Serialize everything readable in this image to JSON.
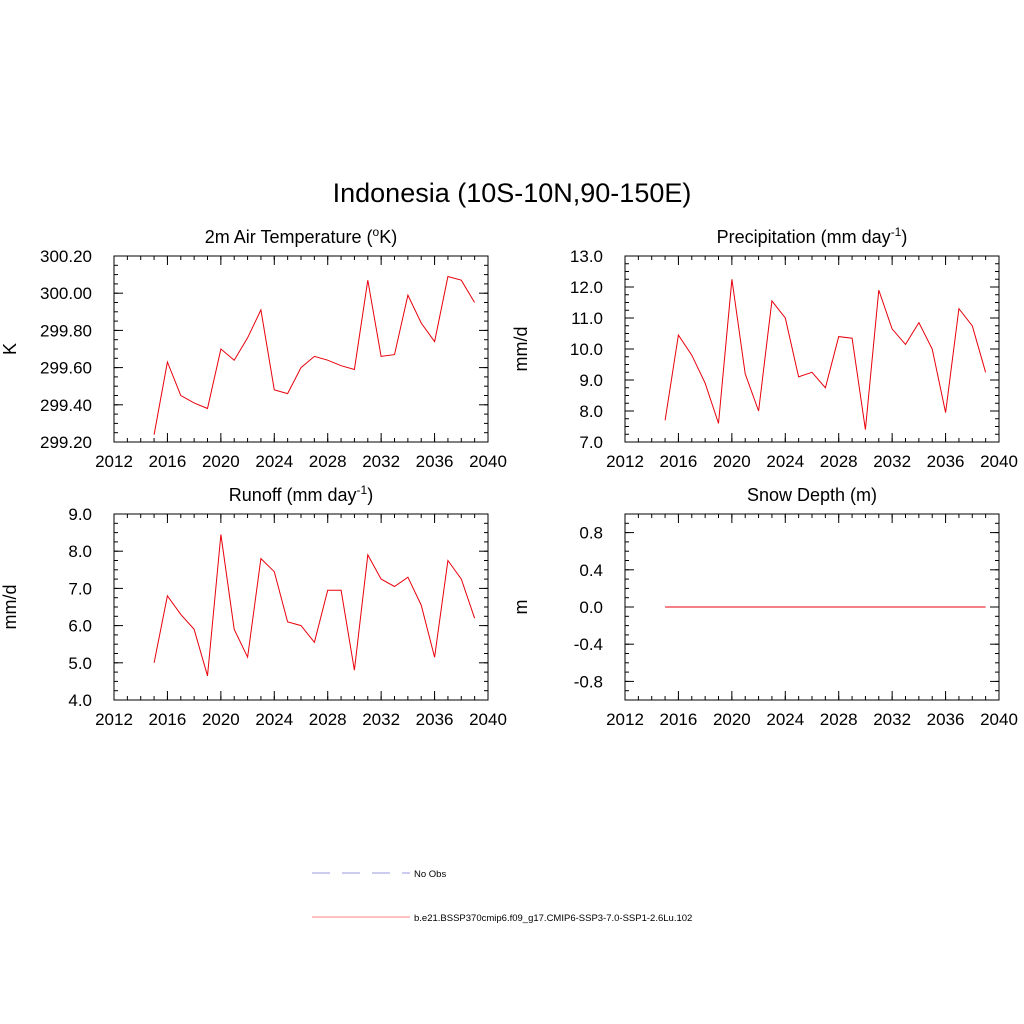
{
  "figure": {
    "title": "Indonesia (10S-10N,90-150E)"
  },
  "chart_data": [
    {
      "type": "line",
      "title": "2m Air Temperature (°K)",
      "title_main": "2m Air Temperature (",
      "title_sup": "o",
      "title_after": "K)",
      "xlabel": "",
      "ylabel": "K",
      "xlim": [
        2012,
        2040
      ],
      "ylim": [
        299.2,
        300.2
      ],
      "xticks": [
        2012,
        2016,
        2020,
        2024,
        2028,
        2032,
        2036,
        2040
      ],
      "yticks": [
        299.2,
        299.4,
        299.6,
        299.8,
        300.0,
        300.2
      ],
      "ytick_labels": [
        "299.20",
        "299.40",
        "299.60",
        "299.80",
        "300.00",
        "300.20"
      ],
      "x_minor_step": 1,
      "y_minor_step": 0.05,
      "series": [
        {
          "color": "#e8000b",
          "x": [
            2015,
            2016,
            2017,
            2018,
            2019,
            2020,
            2021,
            2022,
            2023,
            2024,
            2025,
            2026,
            2027,
            2028,
            2029,
            2030,
            2031,
            2032,
            2033,
            2034,
            2035,
            2036,
            2037,
            2038,
            2039
          ],
          "values": [
            299.24,
            299.63,
            299.45,
            299.41,
            299.38,
            299.7,
            299.64,
            299.76,
            299.91,
            299.48,
            299.46,
            299.6,
            299.66,
            299.64,
            299.61,
            299.59,
            300.07,
            299.66,
            299.67,
            299.99,
            299.84,
            299.74,
            300.09,
            300.07,
            299.95
          ]
        }
      ]
    },
    {
      "type": "line",
      "title": "Precipitation (mm day-1)",
      "title_main": "Precipitation (mm day",
      "title_sup": "-1",
      "title_after": ")",
      "xlabel": "",
      "ylabel": "mm/d",
      "xlim": [
        2012,
        2040
      ],
      "ylim": [
        7.0,
        13.0
      ],
      "xticks": [
        2012,
        2016,
        2020,
        2024,
        2028,
        2032,
        2036,
        2040
      ],
      "yticks": [
        7.0,
        8.0,
        9.0,
        10.0,
        11.0,
        12.0,
        13.0
      ],
      "ytick_labels": [
        "7.0",
        "8.0",
        "9.0",
        "10.0",
        "11.0",
        "12.0",
        "13.0"
      ],
      "x_minor_step": 1,
      "y_minor_step": 0.25,
      "series": [
        {
          "color": "#e8000b",
          "x": [
            2015,
            2016,
            2017,
            2018,
            2019,
            2020,
            2021,
            2022,
            2023,
            2024,
            2025,
            2026,
            2027,
            2028,
            2029,
            2030,
            2031,
            2032,
            2033,
            2034,
            2035,
            2036,
            2037,
            2038,
            2039
          ],
          "values": [
            7.7,
            10.45,
            9.8,
            8.9,
            7.6,
            12.25,
            9.2,
            8.0,
            11.55,
            11.0,
            9.1,
            9.25,
            8.75,
            10.4,
            10.35,
            7.4,
            11.9,
            10.65,
            10.15,
            10.85,
            10.0,
            7.95,
            11.3,
            10.75,
            9.25
          ]
        }
      ]
    },
    {
      "type": "line",
      "title": "Runoff (mm day-1)",
      "title_main": "Runoff (mm day",
      "title_sup": "-1",
      "title_after": ")",
      "xlabel": "",
      "ylabel": "mm/d",
      "xlim": [
        2012,
        2040
      ],
      "ylim": [
        4.0,
        9.0
      ],
      "xticks": [
        2012,
        2016,
        2020,
        2024,
        2028,
        2032,
        2036,
        2040
      ],
      "yticks": [
        4.0,
        5.0,
        6.0,
        7.0,
        8.0,
        9.0
      ],
      "ytick_labels": [
        "4.0",
        "5.0",
        "6.0",
        "7.0",
        "8.0",
        "9.0"
      ],
      "x_minor_step": 1,
      "y_minor_step": 0.25,
      "series": [
        {
          "color": "#e8000b",
          "x": [
            2015,
            2016,
            2017,
            2018,
            2019,
            2020,
            2021,
            2022,
            2023,
            2024,
            2025,
            2026,
            2027,
            2028,
            2029,
            2030,
            2031,
            2032,
            2033,
            2034,
            2035,
            2036,
            2037,
            2038,
            2039
          ],
          "values": [
            5.0,
            6.8,
            6.3,
            5.9,
            4.65,
            8.45,
            5.9,
            5.15,
            7.8,
            7.45,
            6.1,
            6.0,
            5.55,
            6.95,
            6.95,
            4.8,
            7.9,
            7.25,
            7.05,
            7.3,
            6.55,
            5.15,
            7.75,
            7.25,
            6.2
          ]
        }
      ]
    },
    {
      "type": "line",
      "title": "Snow Depth (m)",
      "title_main": "Snow Depth (m)",
      "title_sup": "",
      "title_after": "",
      "xlabel": "",
      "ylabel": "m",
      "xlim": [
        2012,
        2040
      ],
      "ylim": [
        -1.0,
        1.0
      ],
      "xticks": [
        2012,
        2016,
        2020,
        2024,
        2028,
        2032,
        2036,
        2040
      ],
      "yticks": [
        -0.8,
        -0.4,
        0.0,
        0.4,
        0.8
      ],
      "ytick_labels": [
        "-0.8",
        "-0.4",
        "0.0",
        "0.4",
        "0.8"
      ],
      "x_minor_step": 1,
      "y_minor_step": 0.1,
      "series": [
        {
          "color": "#e8000b",
          "x": [
            2015,
            2016,
            2017,
            2018,
            2019,
            2020,
            2021,
            2022,
            2023,
            2024,
            2025,
            2026,
            2027,
            2028,
            2029,
            2030,
            2031,
            2032,
            2033,
            2034,
            2035,
            2036,
            2037,
            2038,
            2039
          ],
          "values": [
            0,
            0,
            0,
            0,
            0,
            0,
            0,
            0,
            0,
            0,
            0,
            0,
            0,
            0,
            0,
            0,
            0,
            0,
            0,
            0,
            0,
            0,
            0,
            0,
            0
          ]
        }
      ]
    }
  ],
  "legend": {
    "items": [
      {
        "label": "No Obs",
        "color": "#9999dd",
        "style": "dashed"
      },
      {
        "label": "b.e21.BSSP370cmip6.f09_g17.CMIP6-SSP3-7.0-SSP1-2.6Lu.102",
        "color": "#e8000b",
        "style": "solid"
      }
    ]
  }
}
